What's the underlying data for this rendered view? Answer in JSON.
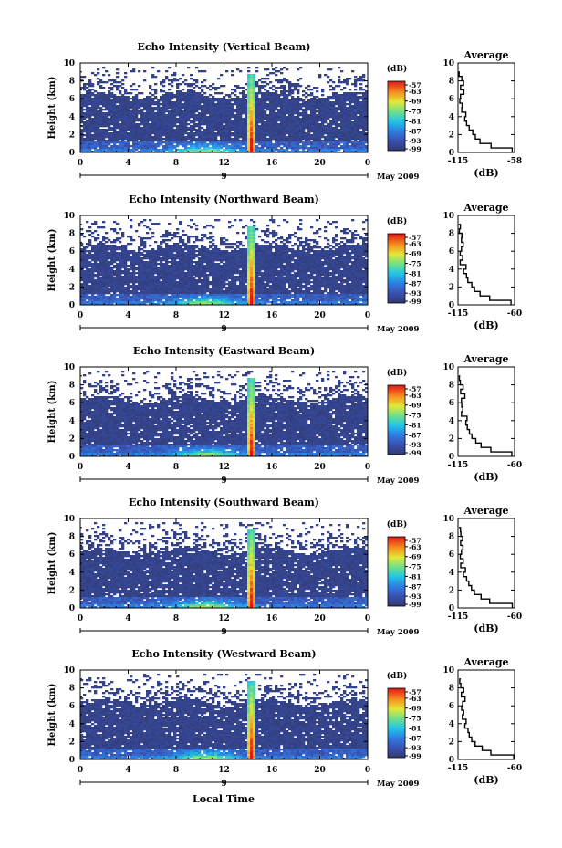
{
  "figure": {
    "common_ylabel": "Height (km)",
    "xlabel": "Local Time",
    "day_label": "9",
    "month_label": "May 2009",
    "colorbar_unit": "(dB)",
    "colorbar_ticks": [
      "-57",
      "-63",
      "-69",
      "-75",
      "-81",
      "-87",
      "-93",
      "-99"
    ],
    "avg_title": "Average",
    "avg_xlabel": "(dB)"
  },
  "chart_data": [
    {
      "type": "heatmap",
      "title": "Echo Intensity (Vertical Beam)",
      "xlabel": "Local Time",
      "ylabel": "Height (km)",
      "xlim": [
        0,
        24
      ],
      "ylim": [
        0,
        10
      ],
      "x_ticks": [
        "0",
        "4",
        "8",
        "12",
        "16",
        "20",
        "0"
      ],
      "y_ticks": [
        "0",
        "2",
        "4",
        "6",
        "8",
        "10"
      ],
      "colorbar": {
        "label": "(dB)",
        "range": [
          -99,
          -57
        ],
        "ticks": [
          -57,
          -63,
          -69,
          -75,
          -81,
          -87,
          -93,
          -99
        ]
      },
      "average_profile": {
        "title": "Average",
        "xlabel": "(dB)",
        "xlim": [
          -115,
          -58
        ],
        "x_tick_labels": [
          "-115",
          "-58"
        ],
        "height_km": [
          0,
          0.5,
          1,
          1.5,
          2,
          2.5,
          3,
          3.5,
          4,
          4.5,
          5,
          5.5,
          6,
          6.5,
          7,
          7.5,
          8,
          8.5,
          9
        ],
        "db": [
          -60,
          -82,
          -92,
          -98,
          -101,
          -104,
          -106,
          -109,
          -108,
          -112,
          -110,
          -113,
          -112,
          -110,
          -112,
          -110,
          -112,
          -113,
          -114
        ]
      }
    },
    {
      "type": "heatmap",
      "title": "Echo Intensity (Northward Beam)",
      "xlabel": "Local Time",
      "ylabel": "Height (km)",
      "xlim": [
        0,
        24
      ],
      "ylim": [
        0,
        10
      ],
      "x_ticks": [
        "0",
        "4",
        "8",
        "12",
        "16",
        "20",
        "0"
      ],
      "y_ticks": [
        "0",
        "2",
        "4",
        "6",
        "8",
        "10"
      ],
      "colorbar": {
        "label": "(dB)",
        "range": [
          -99,
          -57
        ],
        "ticks": [
          -57,
          -63,
          -69,
          -75,
          -81,
          -87,
          -93,
          -99
        ]
      },
      "average_profile": {
        "title": "Average",
        "xlabel": "(dB)",
        "xlim": [
          -115,
          -60
        ],
        "x_tick_labels": [
          "-115",
          "-60"
        ],
        "height_km": [
          0,
          0.5,
          1,
          1.5,
          2,
          2.5,
          3,
          3.5,
          4,
          4.5,
          5,
          5.5,
          6,
          6.5,
          7,
          7.5,
          8,
          8.5,
          9
        ],
        "db": [
          -63,
          -84,
          -93,
          -99,
          -102,
          -105,
          -107,
          -109,
          -108,
          -112,
          -110,
          -113,
          -111,
          -110,
          -112,
          -111,
          -113,
          -113,
          -114
        ]
      }
    },
    {
      "type": "heatmap",
      "title": "Echo Intensity (Eastward Beam)",
      "xlabel": "Local Time",
      "ylabel": "Height (km)",
      "xlim": [
        0,
        24
      ],
      "ylim": [
        0,
        10
      ],
      "x_ticks": [
        "0",
        "4",
        "8",
        "12",
        "16",
        "20",
        "0"
      ],
      "y_ticks": [
        "0",
        "2",
        "4",
        "6",
        "8",
        "10"
      ],
      "colorbar": {
        "label": "(dB)",
        "range": [
          -99,
          -57
        ],
        "ticks": [
          -57,
          -63,
          -69,
          -75,
          -81,
          -87,
          -93,
          -99
        ]
      },
      "average_profile": {
        "title": "Average",
        "xlabel": "(dB)",
        "xlim": [
          -115,
          -60
        ],
        "x_tick_labels": [
          "-115",
          "-60"
        ],
        "height_km": [
          0,
          0.5,
          1,
          1.5,
          2,
          2.5,
          3,
          3.5,
          4,
          4.5,
          5,
          5.5,
          6,
          6.5,
          7,
          7.5,
          8,
          8.5,
          9
        ],
        "db": [
          -62,
          -83,
          -92,
          -98,
          -101,
          -104,
          -106,
          -108,
          -107,
          -111,
          -110,
          -112,
          -111,
          -109,
          -112,
          -110,
          -112,
          -113,
          -113
        ]
      }
    },
    {
      "type": "heatmap",
      "title": "Echo Intensity (Southward Beam)",
      "xlabel": "Local Time",
      "ylabel": "Height (km)",
      "xlim": [
        0,
        24
      ],
      "ylim": [
        0,
        10
      ],
      "x_ticks": [
        "0",
        "4",
        "8",
        "12",
        "16",
        "20",
        "0"
      ],
      "y_ticks": [
        "0",
        "2",
        "4",
        "6",
        "8",
        "10"
      ],
      "colorbar": {
        "label": "(dB)",
        "range": [
          -99,
          -57
        ],
        "ticks": [
          -57,
          -63,
          -69,
          -75,
          -81,
          -87,
          -93,
          -99
        ]
      },
      "average_profile": {
        "title": "Average",
        "xlabel": "(dB)",
        "xlim": [
          -115,
          -60
        ],
        "x_tick_labels": [
          "-115",
          "-60"
        ],
        "height_km": [
          0,
          0.5,
          1,
          1.5,
          2,
          2.5,
          3,
          3.5,
          4,
          4.5,
          5,
          5.5,
          6,
          6.5,
          7,
          7.5,
          8,
          8.5,
          9
        ],
        "db": [
          -62,
          -84,
          -93,
          -99,
          -102,
          -105,
          -107,
          -109,
          -108,
          -112,
          -110,
          -112,
          -111,
          -110,
          -112,
          -111,
          -112,
          -113,
          -114
        ]
      }
    },
    {
      "type": "heatmap",
      "title": "Echo Intensity (Westward Beam)",
      "xlabel": "Local Time",
      "ylabel": "Height (km)",
      "xlim": [
        0,
        24
      ],
      "ylim": [
        0,
        10
      ],
      "x_ticks": [
        "0",
        "4",
        "8",
        "12",
        "16",
        "20",
        "0"
      ],
      "y_ticks": [
        "0",
        "2",
        "4",
        "6",
        "8",
        "10"
      ],
      "colorbar": {
        "label": "(dB)",
        "range": [
          -99,
          -57
        ],
        "ticks": [
          -57,
          -63,
          -69,
          -75,
          -81,
          -87,
          -93,
          -99
        ]
      },
      "average_profile": {
        "title": "Average",
        "xlabel": "(dB)",
        "xlim": [
          -115,
          -60
        ],
        "x_tick_labels": [
          "-115",
          "-60"
        ],
        "height_km": [
          0,
          0.5,
          1,
          1.5,
          2,
          2.5,
          3,
          3.5,
          4,
          4.5,
          5,
          5.5,
          6,
          6.5,
          7,
          7.5,
          8,
          8.5,
          9
        ],
        "db": [
          -61,
          -83,
          -92,
          -98,
          -101,
          -104,
          -106,
          -108,
          -107,
          -111,
          -109,
          -112,
          -110,
          -109,
          -111,
          -110,
          -112,
          -113,
          -113
        ]
      }
    }
  ]
}
